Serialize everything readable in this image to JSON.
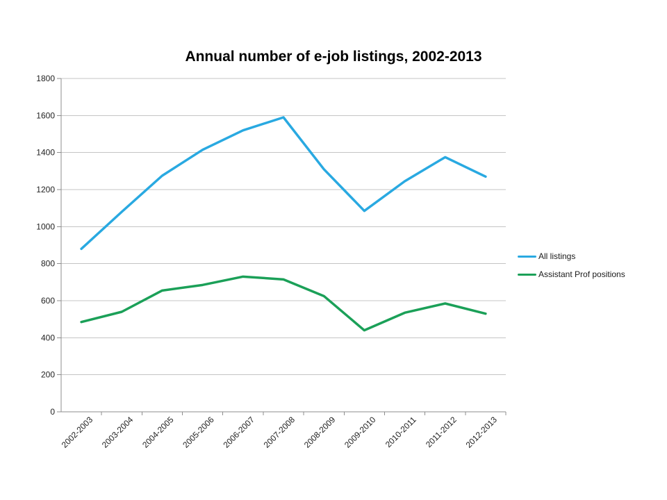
{
  "page": {
    "background": "#ffffff"
  },
  "chart_data": {
    "type": "line",
    "title": "Annual number of e-job listings, 2002-2013",
    "categories": [
      "2002-2003",
      "2003-2004",
      "2004-2005",
      "2005-2006",
      "2006-2007",
      "2007-2008",
      "2008-2009",
      "2009-2010",
      "2010-2011",
      "2011-2012",
      "2012-2013"
    ],
    "series": [
      {
        "name": "All listings",
        "color": "#29A9E1",
        "values": [
          880,
          1080,
          1275,
          1415,
          1520,
          1590,
          1310,
          1085,
          1245,
          1375,
          1270
        ]
      },
      {
        "name": "Assistant Prof positions",
        "color": "#1BA058",
        "values": [
          485,
          540,
          655,
          685,
          730,
          715,
          625,
          440,
          535,
          585,
          530
        ]
      }
    ],
    "xlabel": "",
    "ylabel": "",
    "ylim": [
      0,
      1800
    ],
    "yticks": [
      0,
      200,
      400,
      600,
      800,
      1000,
      1200,
      1400,
      1600,
      1800
    ],
    "grid": true,
    "legend_position": "right-middle",
    "colors": {
      "gridline": "#C4C4C4",
      "axis": "#8D8D8D",
      "tick_label": "#1f1f1f",
      "title": "#000000"
    }
  }
}
